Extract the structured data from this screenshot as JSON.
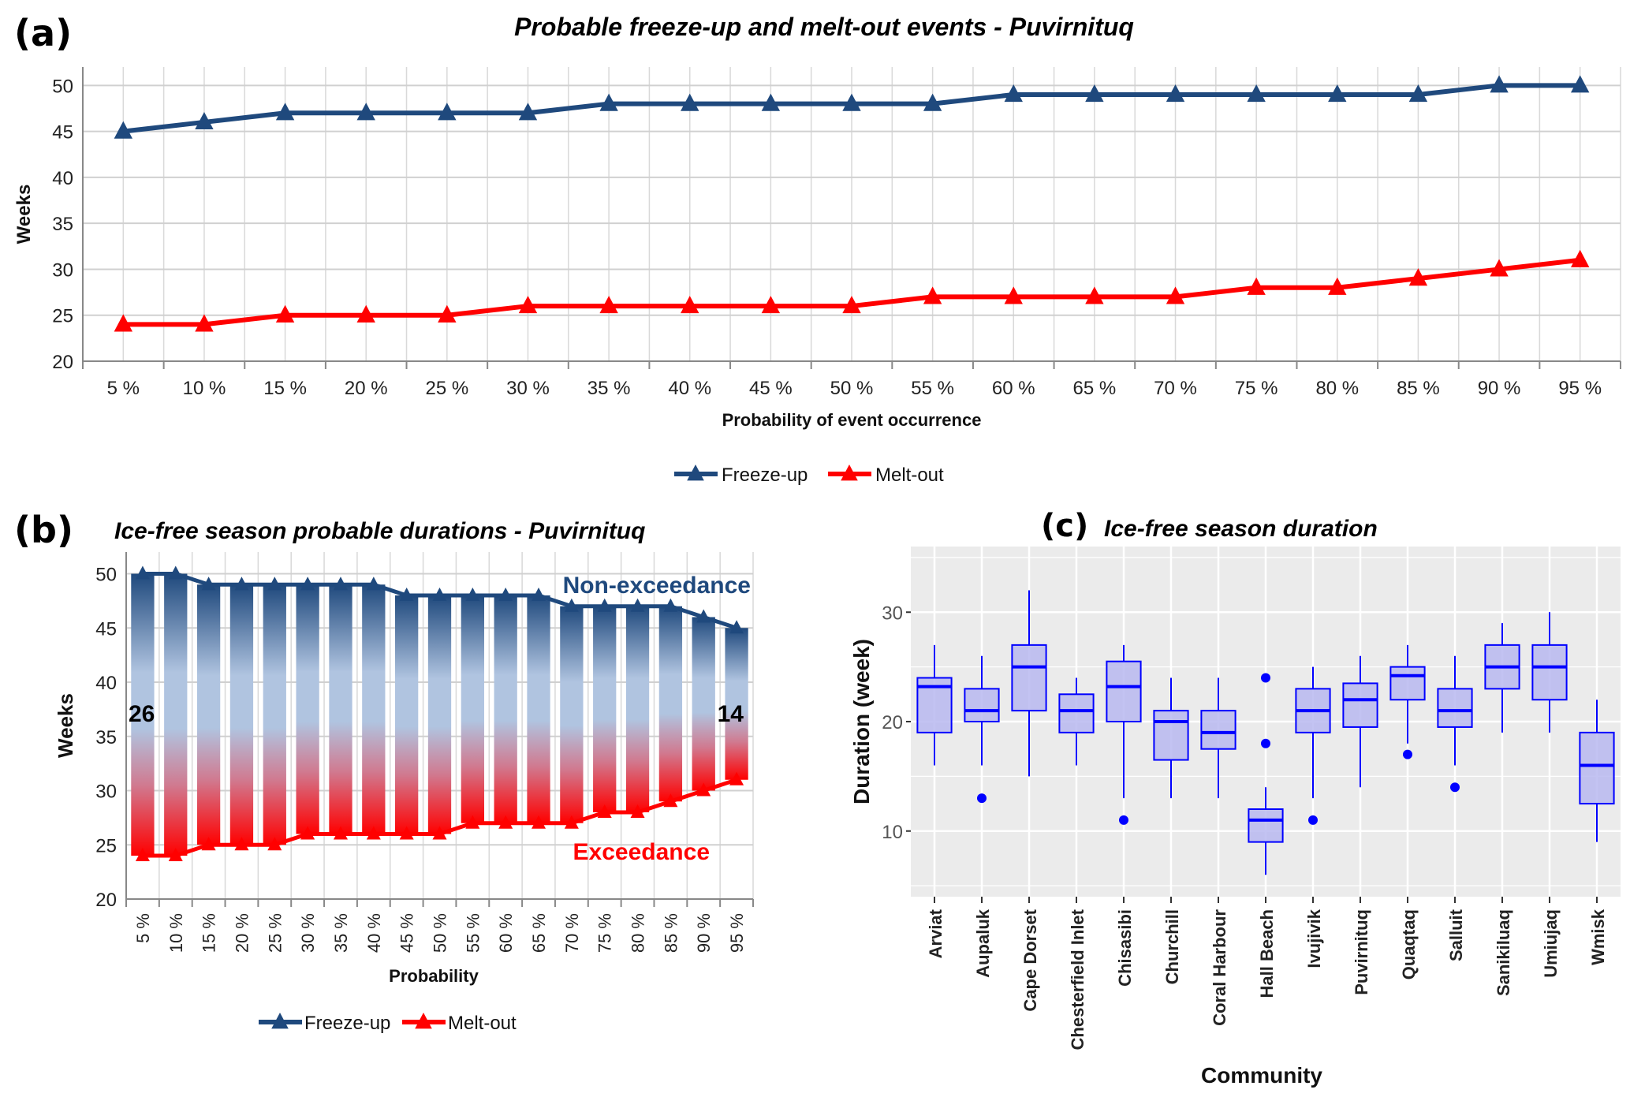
{
  "panels": {
    "a": {
      "label": "(a)"
    },
    "b": {
      "label": "(b)"
    },
    "c": {
      "label": "(c)"
    }
  },
  "chart_data": [
    {
      "id": "a",
      "type": "line",
      "title": "Probable freeze-up and melt-out events - Puvirnituq",
      "xlabel": "Probability of event occurrence",
      "ylabel": "Weeks",
      "ylim": [
        20,
        52
      ],
      "yticks": [
        20,
        25,
        30,
        35,
        40,
        45,
        50
      ],
      "grid": true,
      "legend": "bottom-center",
      "categories": [
        "5 %",
        "10 %",
        "15 %",
        "20 %",
        "25 %",
        "30 %",
        "35 %",
        "40 %",
        "45 %",
        "50 %",
        "55 %",
        "60 %",
        "65 %",
        "70 %",
        "75 %",
        "80 %",
        "85 %",
        "90 %",
        "95 %"
      ],
      "series": [
        {
          "name": "Freeze-up",
          "color": "#1f497d",
          "marker": "triangle",
          "values": [
            45,
            46,
            47,
            47,
            47,
            47,
            48,
            48,
            48,
            48,
            48,
            49,
            49,
            49,
            49,
            49,
            49,
            50,
            50
          ]
        },
        {
          "name": "Melt-out",
          "color": "#ff0000",
          "marker": "triangle",
          "values": [
            24,
            24,
            25,
            25,
            25,
            26,
            26,
            26,
            26,
            26,
            27,
            27,
            27,
            27,
            28,
            28,
            29,
            30,
            31
          ]
        }
      ]
    },
    {
      "id": "b",
      "type": "bar",
      "title": "Ice-free season probable durations - Puvirnituq",
      "xlabel": "Probability",
      "ylabel": "Weeks",
      "ylim": [
        20,
        52
      ],
      "yticks": [
        20,
        25,
        30,
        35,
        40,
        45,
        50
      ],
      "grid": true,
      "legend": "bottom-center",
      "categories": [
        "5 %",
        "10 %",
        "15 %",
        "20 %",
        "25 %",
        "30 %",
        "35 %",
        "40 %",
        "45 %",
        "50 %",
        "55 %",
        "60 %",
        "65 %",
        "70 %",
        "75 %",
        "80 %",
        "85 %",
        "90 %",
        "95 %"
      ],
      "series": [
        {
          "name": "Freeze-up",
          "color": "#1f497d",
          "marker": "triangle",
          "values": [
            50,
            50,
            49,
            49,
            49,
            49,
            49,
            49,
            48,
            48,
            48,
            48,
            48,
            47,
            47,
            47,
            47,
            46,
            45
          ]
        },
        {
          "name": "Melt-out",
          "color": "#ff0000",
          "marker": "triangle",
          "values": [
            24,
            24,
            25,
            25,
            25,
            26,
            26,
            26,
            26,
            26,
            27,
            27,
            27,
            27,
            28,
            28,
            29,
            30,
            31
          ]
        }
      ],
      "annotations": [
        {
          "text": "Non-exceedance",
          "color": "#1f497d",
          "position": "top-right"
        },
        {
          "text": "Exceedance",
          "color": "#ff0000",
          "position": "bottom-right"
        },
        {
          "text": "26",
          "color": "#000000",
          "position": "left"
        },
        {
          "text": "14",
          "color": "#000000",
          "position": "right"
        }
      ]
    },
    {
      "id": "c",
      "type": "box",
      "title": "Ice-free season duration",
      "xlabel": "Community",
      "ylabel": "Duration (week)",
      "ylim": [
        4,
        36
      ],
      "yticks": [
        10,
        20,
        30
      ],
      "grid": true,
      "color": "#0000ff",
      "fill": "#b8b8f0",
      "categories": [
        "Arviat",
        "Aupaluk",
        "Cape Dorset",
        "Chesterfield Inlet",
        "Chisasibi",
        "Churchill",
        "Coral Harbour",
        "Hall Beach",
        "Ivujivik",
        "Puvirnituq",
        "Quaqtaq",
        "Salluit",
        "Sanikiluaq",
        "Umiujaq",
        "Wmisk"
      ],
      "boxes": [
        {
          "min": 16,
          "q1": 19,
          "median": 23.2,
          "q3": 24,
          "max": 27,
          "outliers": []
        },
        {
          "min": 16,
          "q1": 20,
          "median": 21,
          "q3": 23,
          "max": 26,
          "outliers": [
            13
          ]
        },
        {
          "min": 15,
          "q1": 21,
          "median": 25,
          "q3": 27,
          "max": 32,
          "outliers": []
        },
        {
          "min": 16,
          "q1": 19,
          "median": 21,
          "q3": 22.5,
          "max": 24,
          "outliers": []
        },
        {
          "min": 13,
          "q1": 20,
          "median": 23.2,
          "q3": 25.5,
          "max": 27,
          "outliers": [
            11
          ]
        },
        {
          "min": 13,
          "q1": 16.5,
          "median": 20,
          "q3": 21,
          "max": 24,
          "outliers": []
        },
        {
          "min": 13,
          "q1": 17.5,
          "median": 19,
          "q3": 21,
          "max": 24,
          "outliers": []
        },
        {
          "min": 6,
          "q1": 9,
          "median": 11,
          "q3": 12,
          "max": 14,
          "outliers": [
            18,
            24
          ]
        },
        {
          "min": 13,
          "q1": 19,
          "median": 21,
          "q3": 23,
          "max": 25,
          "outliers": [
            11
          ]
        },
        {
          "min": 14,
          "q1": 19.5,
          "median": 22,
          "q3": 23.5,
          "max": 26,
          "outliers": []
        },
        {
          "min": 18,
          "q1": 22,
          "median": 24.2,
          "q3": 25,
          "max": 27,
          "outliers": [
            17
          ]
        },
        {
          "min": 16,
          "q1": 19.5,
          "median": 21,
          "q3": 23,
          "max": 26,
          "outliers": [
            14
          ]
        },
        {
          "min": 19,
          "q1": 23,
          "median": 25,
          "q3": 27,
          "max": 29,
          "outliers": []
        },
        {
          "min": 19,
          "q1": 22,
          "median": 25,
          "q3": 27,
          "max": 30,
          "outliers": []
        },
        {
          "min": 9,
          "q1": 12.5,
          "median": 16,
          "q3": 19,
          "max": 22,
          "outliers": []
        }
      ]
    }
  ]
}
